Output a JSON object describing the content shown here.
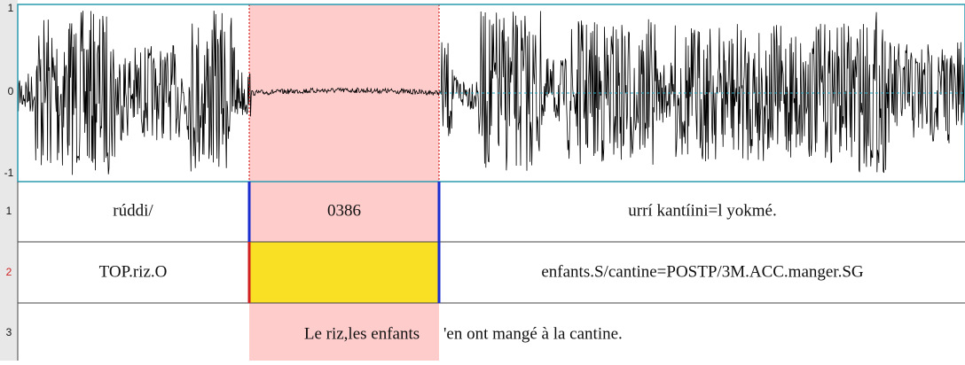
{
  "waveform": {
    "ticks": [
      "1",
      "0",
      "-1"
    ]
  },
  "tiers": [
    {
      "number": "1",
      "intervals": [
        "rúddi/",
        "0386",
        "urrí kantíini=l yokmé."
      ]
    },
    {
      "number": "2",
      "intervals": [
        "TOP.riz.O",
        "",
        "enfants.S/cantine=POSTP/3M.ACC.manger.SG"
      ]
    },
    {
      "number": "3",
      "intervals": [
        "Le riz,les enfants",
        "'en ont mangé à la cantine."
      ]
    }
  ]
}
